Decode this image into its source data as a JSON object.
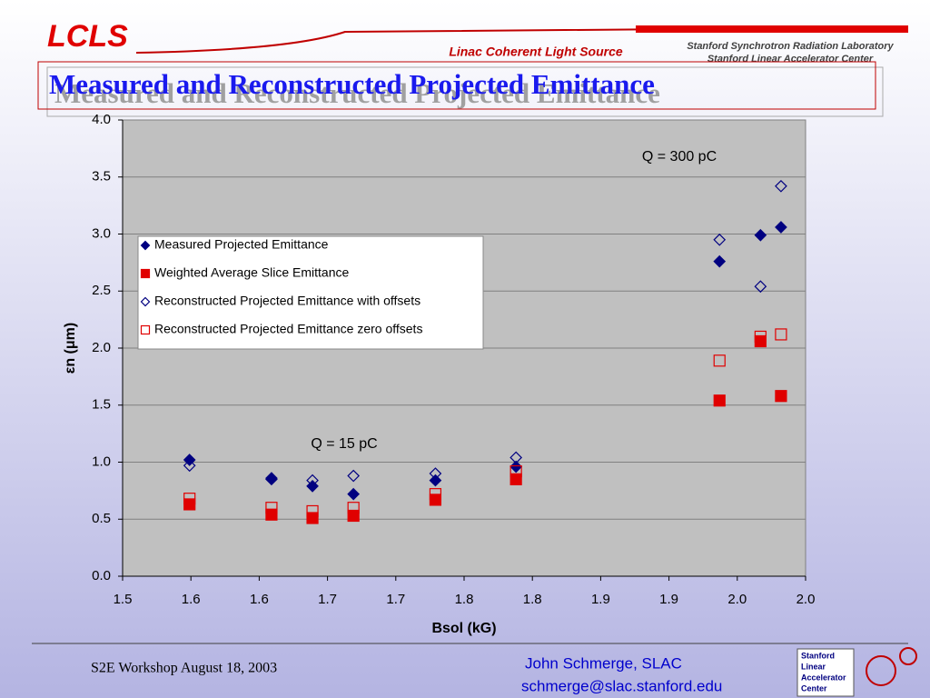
{
  "header": {
    "logo": "LCLS",
    "lab_name": "Linac Coherent Light Source",
    "institution_1": "Stanford Synchrotron Radiation Laboratory",
    "institution_2": "Stanford Linear Accelerator Center"
  },
  "title": "Measured and Reconstructed Projected Emittance",
  "chart_data": {
    "type": "scatter",
    "x_label": "Bsol (kG)",
    "y_label": "εn (μm)",
    "annotations": [
      "Q = 300 pC",
      "Q = 15 pC"
    ],
    "xlim": [
      1.5,
      2.0
    ],
    "ylim": [
      0,
      4
    ],
    "xticks": [
      1.5,
      {
        "value": 1.55,
        "label": "1.6"
      },
      1.6,
      {
        "value": 1.65,
        "label": "1.7"
      },
      1.7,
      {
        "value": 1.75,
        "label": "1.8"
      },
      1.8,
      {
        "value": 1.85,
        "label": "1.9"
      },
      1.9,
      {
        "value": 1.95,
        "label": "2.0"
      },
      {
        "value": 2,
        "label": "2.0"
      }
    ],
    "yticks": [
      {
        "value": 0,
        "label": "0.0"
      },
      0.5,
      {
        "value": 1,
        "label": "1.0"
      },
      1.5,
      {
        "value": 2,
        "label": "2.0"
      },
      2.5,
      {
        "value": 3,
        "label": "3.0"
      },
      3.5,
      {
        "value": 4,
        "label": "4.0"
      }
    ],
    "grid": true,
    "x": [
      1.549,
      1.609,
      1.639,
      1.669,
      1.729,
      1.788,
      1.937,
      1.967,
      1.982
    ],
    "series": [
      {
        "name": "Measured Projected Emittance",
        "color": "#000080",
        "marker": "diamond",
        "filled": true,
        "values": [
          1.02,
          0.85,
          0.79,
          0.72,
          0.84,
          0.96,
          2.76,
          2.99,
          3.06
        ]
      },
      {
        "name": "Weighted Average Slice Emittance",
        "color": "#e00000",
        "marker": "square",
        "filled": true,
        "values": [
          0.63,
          0.54,
          0.51,
          0.53,
          0.67,
          0.85,
          1.54,
          2.06,
          1.58
        ]
      },
      {
        "name": "Reconstructed Projected Emittance with offsets",
        "color": "#000080",
        "marker": "diamond",
        "filled": false,
        "values": [
          0.97,
          0.86,
          0.84,
          0.88,
          0.9,
          1.04,
          2.95,
          2.54,
          3.42
        ]
      },
      {
        "name": "Reconstructed Projected Emittance zero offsets",
        "color": "#e00000",
        "marker": "square",
        "filled": false,
        "values": [
          0.68,
          0.6,
          0.57,
          0.6,
          0.72,
          0.92,
          1.89,
          2.1,
          2.12
        ]
      }
    ]
  },
  "footer": {
    "event": "S2E Workshop August 18, 2003",
    "author": "John Schmerge, SLAC",
    "email": "schmerge@slac.stanford.edu",
    "logo_lines": [
      "Stanford",
      "Linear",
      "Accelerator",
      "Center"
    ]
  }
}
